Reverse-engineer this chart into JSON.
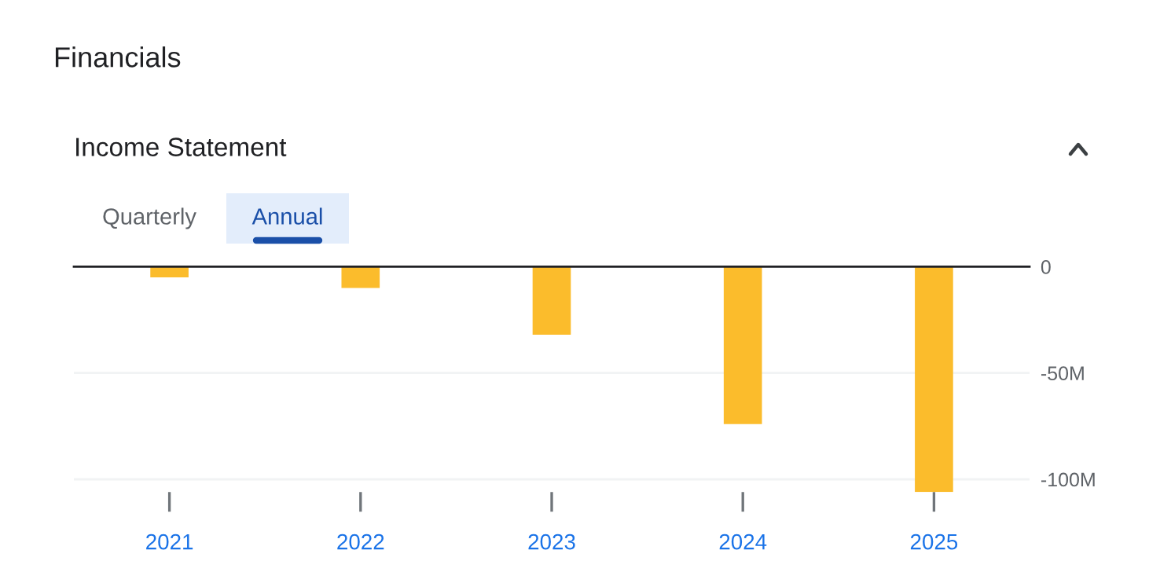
{
  "chart_data": {
    "type": "bar",
    "title": "Financials",
    "subtitle": "Income Statement",
    "annotations": [
      "Quarterly",
      "Annual"
    ],
    "categories": [
      "2021",
      "2022",
      "2023",
      "2024",
      "2025"
    ],
    "values": [
      -5,
      -10,
      -32,
      -74,
      -106
    ],
    "color": "#fbbc2c",
    "ylim": [
      -106,
      0
    ],
    "yticks": [
      {
        "value": 0,
        "label": "0"
      },
      {
        "value": -50,
        "label": "-50M"
      },
      {
        "value": -100,
        "label": "-100M"
      }
    ],
    "grid": "y"
  }
}
